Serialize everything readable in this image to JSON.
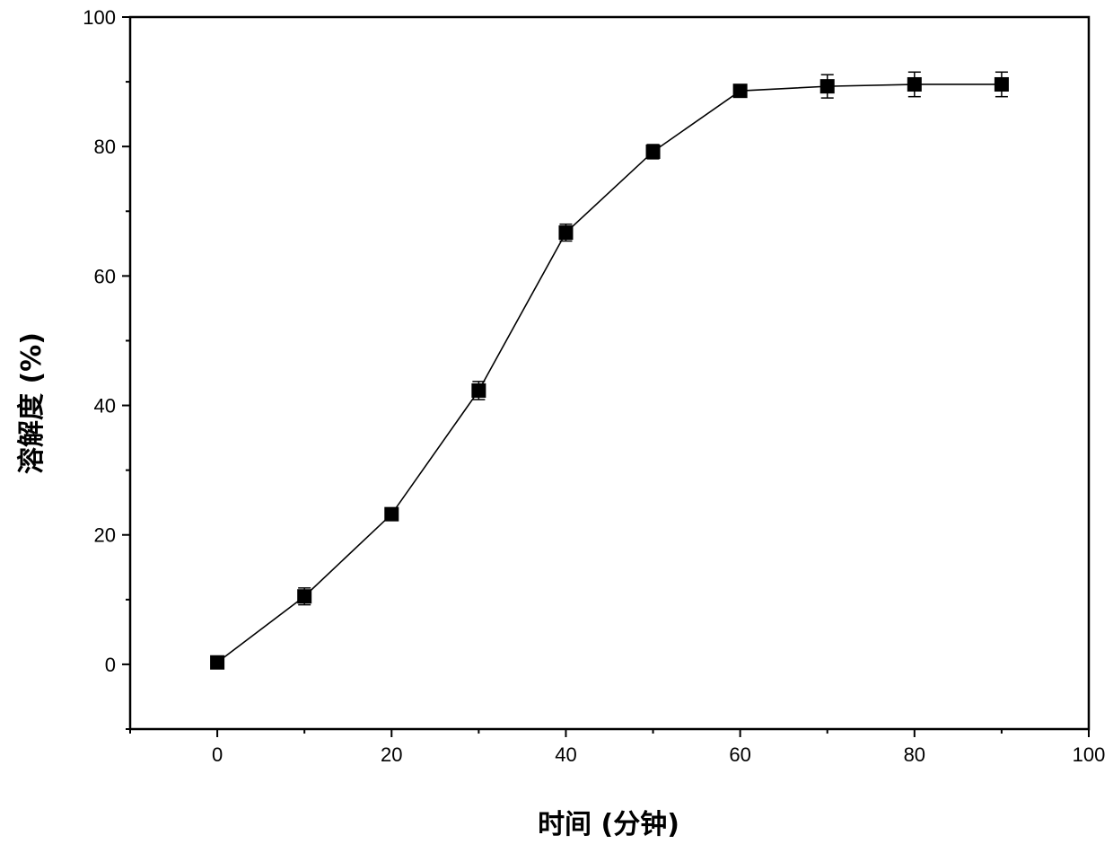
{
  "chart_data": {
    "type": "line",
    "title": "",
    "xlabel": "时间 (分钟)",
    "ylabel": "溶解度 (%)",
    "xlim": [
      -10,
      100
    ],
    "ylim": [
      -10,
      100
    ],
    "xticks": [
      0,
      20,
      40,
      60,
      80,
      100
    ],
    "yticks": [
      0,
      20,
      40,
      60,
      80,
      100
    ],
    "grid": false,
    "legend": "none",
    "marker": "square",
    "color": "#000000",
    "series": [
      {
        "x": [
          0,
          10,
          20,
          30,
          40,
          50,
          60,
          70,
          80,
          90
        ],
        "y": [
          0.3,
          10.5,
          23.2,
          42.3,
          66.7,
          79.2,
          88.6,
          89.3,
          89.6,
          89.6
        ],
        "error": [
          0.6,
          1.3,
          0.8,
          1.4,
          1.3,
          1.1,
          0.8,
          1.8,
          1.9,
          1.9
        ]
      }
    ]
  }
}
